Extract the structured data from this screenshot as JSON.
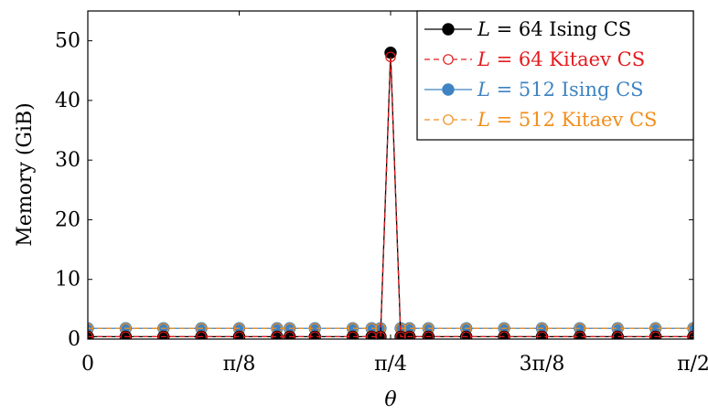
{
  "chart_data": {
    "type": "line",
    "ylabel": "Memory (GiB)",
    "xlabel": "θ",
    "xlim": [
      0,
      1.5707963
    ],
    "ylim": [
      0,
      55
    ],
    "x_ticks": [
      {
        "value": 0,
        "label": "0"
      },
      {
        "value": 0.3926991,
        "label": "π/8"
      },
      {
        "value": 0.7853982,
        "label": "π/4"
      },
      {
        "value": 1.1780972,
        "label": "3π/8"
      },
      {
        "value": 1.5707963,
        "label": "π/2"
      }
    ],
    "y_ticks": [
      0,
      10,
      20,
      30,
      40,
      50
    ],
    "legend_position": "top-right",
    "x": [
      0,
      0.0982,
      0.1963,
      0.2945,
      0.3927,
      0.4909,
      0.5236,
      0.589,
      0.6872,
      0.7363,
      0.7592,
      0.7854,
      0.8116,
      0.8345,
      0.8836,
      0.9817,
      1.0799,
      1.1781,
      1.2763,
      1.3744,
      1.4726,
      1.5708
    ],
    "series": [
      {
        "name": "L = 64 Ising CS",
        "label_parts": [
          "L",
          " = 64 Ising CS"
        ],
        "color": "#000000",
        "line_style": "solid",
        "marker": "filled-circle",
        "values": [
          0.4,
          0.4,
          0.4,
          0.4,
          0.4,
          0.4,
          0.4,
          0.4,
          0.4,
          0.4,
          0.4,
          48.0,
          0.4,
          0.4,
          0.4,
          0.4,
          0.4,
          0.4,
          0.4,
          0.4,
          0.4,
          0.4
        ]
      },
      {
        "name": "L = 64 Kitaev CS",
        "label_parts": [
          "L",
          " = 64 Kitaev CS"
        ],
        "color": "#e41a1c",
        "line_style": "dashed",
        "marker": "open-circle",
        "values": [
          0.4,
          0.4,
          0.4,
          0.4,
          0.4,
          0.4,
          0.4,
          0.4,
          0.4,
          0.4,
          0.4,
          47.3,
          0.4,
          0.4,
          0.4,
          0.4,
          0.4,
          0.4,
          0.4,
          0.4,
          0.4,
          0.4
        ]
      },
      {
        "name": "L = 512 Ising CS",
        "label_parts": [
          "L",
          " = 512 Ising CS"
        ],
        "color": "#3f83c2",
        "line_style": "solid",
        "marker": "filled-circle",
        "values": [
          1.8,
          1.8,
          1.8,
          1.8,
          1.8,
          1.8,
          1.8,
          1.8,
          1.8,
          1.8,
          1.8,
          null,
          1.8,
          1.8,
          1.8,
          1.8,
          1.8,
          1.8,
          1.8,
          1.8,
          1.8,
          1.8
        ]
      },
      {
        "name": "L = 512 Kitaev CS",
        "label_parts": [
          "L",
          " = 512 Kitaev CS"
        ],
        "color": "#f28e1c",
        "line_style": "dashed",
        "marker": "open-circle",
        "values": [
          1.8,
          1.8,
          1.8,
          1.8,
          1.8,
          1.8,
          1.8,
          1.8,
          1.8,
          1.8,
          1.8,
          null,
          1.8,
          1.8,
          1.8,
          1.8,
          1.8,
          1.8,
          1.8,
          1.8,
          1.8,
          1.8
        ]
      }
    ]
  }
}
